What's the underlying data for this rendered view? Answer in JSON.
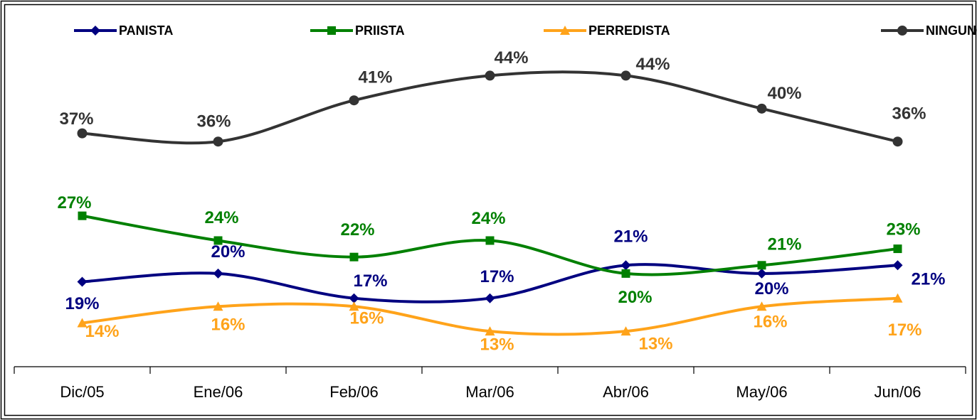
{
  "chart_data": {
    "type": "line",
    "categories": [
      "Dic/05",
      "Ene/06",
      "Feb/06",
      "Mar/06",
      "Abr/06",
      "May/06",
      "Jun/06"
    ],
    "ylim": [
      8.7,
      48
    ],
    "legend": "top",
    "series": [
      {
        "name": "PANISTA",
        "color": "#000080",
        "marker": "diamond",
        "values": [
          19,
          20,
          17,
          17,
          21,
          20,
          21
        ],
        "value_labels": [
          "19%",
          "20%",
          "17%",
          "17%",
          "21%",
          "20%",
          "21%"
        ]
      },
      {
        "name": "PRIISTA",
        "color": "#008000",
        "marker": "square",
        "values": [
          27,
          24,
          22,
          24,
          20,
          21,
          23
        ],
        "value_labels": [
          "27%",
          "24%",
          "22%",
          "24%",
          "20%",
          "21%",
          "23%"
        ]
      },
      {
        "name": "PERREDISTA",
        "color": "#FFA31A",
        "marker": "triangle",
        "values": [
          14,
          16,
          16,
          13,
          13,
          16,
          17
        ],
        "value_labels": [
          "14%",
          "16%",
          "16%",
          "13%",
          "13%",
          "16%",
          "17%"
        ]
      },
      {
        "name": "NINGUNO",
        "color": "#333333",
        "marker": "circle",
        "values": [
          37,
          36,
          41,
          44,
          44,
          40,
          36
        ],
        "value_labels": [
          "37%",
          "36%",
          "41%",
          "44%",
          "44%",
          "40%",
          "36%"
        ]
      }
    ]
  }
}
